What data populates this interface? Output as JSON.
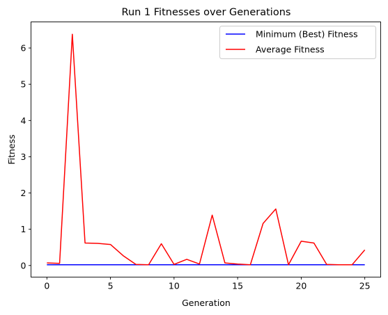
{
  "chart_data": {
    "type": "line",
    "title": "Run 1 Fitnesses over Generations",
    "xlabel": "Generation",
    "ylabel": "Fitness",
    "xlim": [
      -1.25,
      26.25
    ],
    "ylim": [
      -0.32,
      6.72
    ],
    "xticks": [
      0,
      5,
      10,
      15,
      20,
      25
    ],
    "yticks": [
      0,
      1,
      2,
      3,
      4,
      5,
      6
    ],
    "grid": false,
    "legend_position": "top-right",
    "x": [
      0,
      1,
      2,
      3,
      4,
      5,
      6,
      7,
      8,
      9,
      10,
      11,
      12,
      13,
      14,
      15,
      16,
      17,
      18,
      19,
      20,
      21,
      22,
      23,
      24,
      25
    ],
    "series": [
      {
        "name": "Minimum (Best) Fitness",
        "color": "#0000ff",
        "values": [
          0.02,
          0.02,
          0.02,
          0.02,
          0.02,
          0.02,
          0.02,
          0.02,
          0.02,
          0.02,
          0.02,
          0.02,
          0.02,
          0.02,
          0.02,
          0.02,
          0.02,
          0.02,
          0.02,
          0.02,
          0.02,
          0.02,
          0.02,
          0.02,
          0.02,
          0.02
        ]
      },
      {
        "name": "Average Fitness",
        "color": "#ff0000",
        "values": [
          0.07,
          0.06,
          6.38,
          0.62,
          0.61,
          0.58,
          0.27,
          0.03,
          0.02,
          0.6,
          0.03,
          0.17,
          0.04,
          1.39,
          0.07,
          0.04,
          0.02,
          1.16,
          1.56,
          0.02,
          0.67,
          0.62,
          0.03,
          0.02,
          0.02,
          0.43
        ]
      }
    ]
  }
}
